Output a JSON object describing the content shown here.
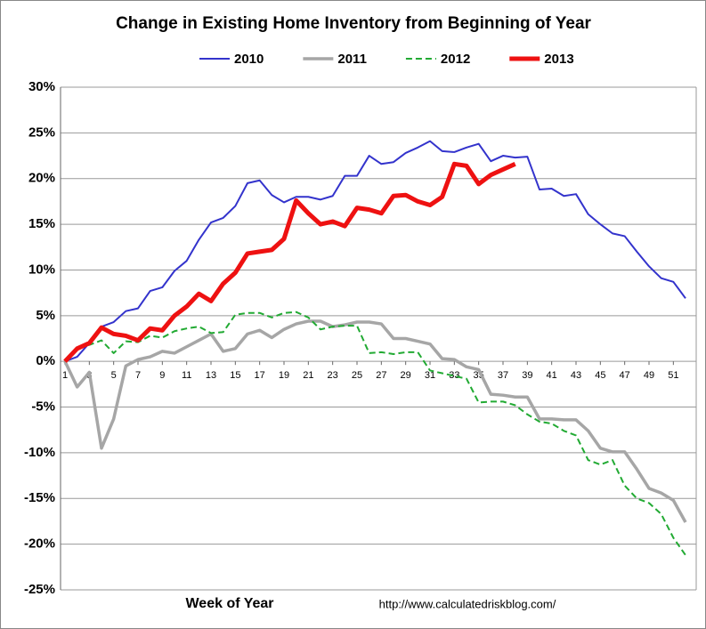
{
  "chart_data": {
    "type": "line",
    "title": "Change in Existing Home Inventory from Beginning of Year",
    "xlabel": "Week of Year",
    "source": "http://www.calculatedriskblog.com/",
    "x": [
      1,
      2,
      3,
      4,
      5,
      6,
      7,
      8,
      9,
      10,
      11,
      12,
      13,
      14,
      15,
      16,
      17,
      18,
      19,
      20,
      21,
      22,
      23,
      24,
      25,
      26,
      27,
      28,
      29,
      30,
      31,
      32,
      33,
      34,
      35,
      36,
      37,
      38,
      39,
      40,
      41,
      42,
      43,
      44,
      45,
      46,
      47,
      48,
      49,
      50,
      51,
      52
    ],
    "xlim": [
      1,
      52
    ],
    "xticks": [
      1,
      3,
      5,
      7,
      9,
      11,
      13,
      15,
      17,
      19,
      21,
      23,
      25,
      27,
      29,
      31,
      33,
      35,
      37,
      39,
      41,
      43,
      45,
      47,
      49,
      51
    ],
    "ylim": [
      -25,
      30
    ],
    "yticks": [
      {
        "value": -25,
        "label": "-25%"
      },
      {
        "value": -20,
        "label": "-20%"
      },
      {
        "value": -15,
        "label": "-15%"
      },
      {
        "value": -10,
        "label": "-10%"
      },
      {
        "value": -5,
        "label": "-5%"
      },
      {
        "value": 0,
        "label": "0%"
      },
      {
        "value": 5,
        "label": "5%"
      },
      {
        "value": 10,
        "label": "10%"
      },
      {
        "value": 15,
        "label": "15%"
      },
      {
        "value": 20,
        "label": "20%"
      },
      {
        "value": 25,
        "label": "25%"
      },
      {
        "value": 30,
        "label": "30%"
      }
    ],
    "grid": true,
    "legend": "top",
    "series": [
      {
        "name": "2010",
        "color": "#3333cc",
        "width": 2,
        "dashed": false,
        "values": [
          0,
          0.5,
          2,
          3.8,
          4.3,
          5.5,
          5.8,
          7.7,
          8.1,
          9.9,
          11,
          13.3,
          15.2,
          15.7,
          17,
          19.5,
          19.8,
          18.2,
          17.4,
          18,
          18,
          17.7,
          18.1,
          20.3,
          20.3,
          22.5,
          21.6,
          21.8,
          22.8,
          23.4,
          24.1,
          23,
          22.9,
          23.4,
          23.8,
          21.9,
          22.5,
          22.3,
          22.4,
          18.8,
          18.9,
          18.1,
          18.3,
          16.1,
          15,
          14,
          13.7,
          12,
          10.4,
          9.1,
          8.7,
          6.9
        ]
      },
      {
        "name": "2011",
        "color": "#a6a6a6",
        "width": 3.5,
        "dashed": false,
        "values": [
          0,
          -2.8,
          -1.2,
          -9.5,
          -6.3,
          -0.5,
          0.2,
          0.5,
          1.1,
          0.9,
          1.6,
          2.3,
          3,
          1.1,
          1.4,
          3,
          3.4,
          2.6,
          3.5,
          4.1,
          4.4,
          4.4,
          3.8,
          4,
          4.3,
          4.3,
          4.1,
          2.5,
          2.5,
          2.2,
          1.9,
          0.3,
          0.2,
          -0.6,
          -0.9,
          -3.6,
          -3.7,
          -3.9,
          -3.9,
          -6.3,
          -6.3,
          -6.4,
          -6.4,
          -7.6,
          -9.5,
          -9.9,
          -9.9,
          -11.8,
          -13.9,
          -14.4,
          -15.2,
          -17.6
        ]
      },
      {
        "name": "2012",
        "color": "#22aa33",
        "width": 2,
        "dashed": true,
        "values": [
          0,
          1.5,
          1.8,
          2.3,
          0.9,
          2.2,
          2.1,
          2.8,
          2.6,
          3.3,
          3.6,
          3.8,
          3.1,
          3.2,
          5.1,
          5.3,
          5.3,
          4.8,
          5.3,
          5.4,
          4.8,
          3.5,
          3.8,
          3.9,
          3.9,
          0.9,
          1,
          0.8,
          1,
          1,
          -1,
          -1.3,
          -1.6,
          -1.9,
          -4.5,
          -4.4,
          -4.4,
          -4.8,
          -5.8,
          -6.6,
          -6.8,
          -7.6,
          -8.1,
          -10.8,
          -11.3,
          -10.8,
          -13.6,
          -15,
          -15.5,
          -16.7,
          -19.3,
          -21.2
        ]
      },
      {
        "name": "2013",
        "color": "#ee1111",
        "width": 5,
        "dashed": false,
        "values": [
          0,
          1.4,
          2,
          3.7,
          3,
          2.8,
          2.3,
          3.6,
          3.4,
          5,
          6,
          7.4,
          6.6,
          8.5,
          9.7,
          11.8,
          12,
          12.2,
          13.4,
          17.6,
          16.2,
          15,
          15.3,
          14.8,
          16.8,
          16.6,
          16.2,
          18.1,
          18.2,
          17.5,
          17.1,
          18,
          21.6,
          21.4,
          19.4,
          20.4,
          21,
          21.6,
          null,
          null,
          null,
          null,
          null,
          null,
          null,
          null,
          null,
          null,
          null,
          null,
          null,
          null
        ]
      }
    ]
  }
}
